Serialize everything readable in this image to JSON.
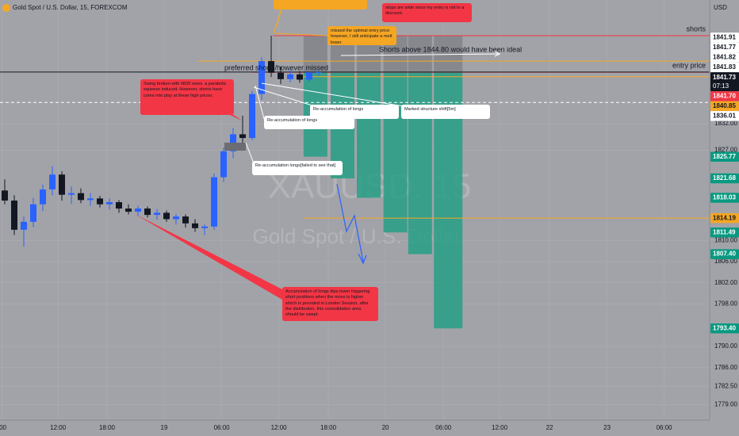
{
  "chart_data": {
    "type": "candlestick",
    "title": "Gold Spot / U.S. Dollar, 15, FOREXCOM",
    "currency": "USD",
    "watermark": [
      "XAUUSD, 15",
      "Gold Spot / U.S. Dollar"
    ],
    "up_color": "#2962ff",
    "down_color": "#131722",
    "x": [
      0.5,
      1.5,
      2.5,
      3.5,
      4.5,
      5.5,
      6.5,
      7.5,
      8.5,
      9.5,
      10.5,
      11.5,
      12.5,
      13.5,
      14.5,
      15.5,
      16.5,
      17.5,
      18.5,
      19.5,
      20.5,
      21.5,
      22.5,
      23.5,
      24.5,
      25.5,
      26.5,
      27.5,
      28.5,
      29.5,
      30.5,
      31.5,
      32.5,
      33.5
    ],
    "open": [
      1819.4,
      1817.5,
      1812.0,
      1813.5,
      1816.8,
      1819.6,
      1822.4,
      1818.6,
      1818.9,
      1817.6,
      1817.9,
      1816.8,
      1817.2,
      1816.0,
      1815.4,
      1816.0,
      1814.8,
      1815.2,
      1814.0,
      1814.5,
      1813.2,
      1812.3,
      1812.6,
      1821.9,
      1826.8,
      1830.0,
      1829.3,
      1837.6,
      1843.8,
      1841.6,
      1840.4,
      1841.3,
      1840.3,
      1841.7
    ],
    "high": [
      1821.5,
      1818.5,
      1814.5,
      1818.0,
      1820.5,
      1824.0,
      1823.0,
      1820.2,
      1819.8,
      1818.9,
      1818.4,
      1817.9,
      1817.6,
      1816.8,
      1816.5,
      1816.4,
      1815.9,
      1815.6,
      1815.0,
      1814.9,
      1814.0,
      1813.0,
      1822.6,
      1827.5,
      1831.2,
      1833.5,
      1838.2,
      1844.5,
      1848.6,
      1842.8,
      1842.2,
      1841.9,
      1841.5,
      1842.0
    ],
    "low": [
      1816.8,
      1811.0,
      1808.8,
      1812.5,
      1815.5,
      1818.5,
      1817.5,
      1816.9,
      1817.0,
      1816.5,
      1816.2,
      1815.8,
      1815.2,
      1814.9,
      1814.6,
      1814.3,
      1813.9,
      1813.5,
      1813.0,
      1812.4,
      1811.6,
      1811.0,
      1812.0,
      1821.0,
      1825.5,
      1828.2,
      1828.9,
      1836.5,
      1840.8,
      1839.5,
      1839.8,
      1839.7,
      1839.9,
      1841.0
    ],
    "close": [
      1817.5,
      1812.0,
      1813.5,
      1816.8,
      1819.6,
      1822.4,
      1818.6,
      1818.9,
      1817.6,
      1817.9,
      1816.8,
      1817.2,
      1816.0,
      1815.4,
      1816.0,
      1814.8,
      1815.2,
      1814.0,
      1814.5,
      1813.2,
      1812.3,
      1812.6,
      1821.9,
      1826.8,
      1830.0,
      1829.3,
      1837.6,
      1843.8,
      1841.6,
      1840.4,
      1841.3,
      1840.3,
      1841.7,
      1841.73
    ],
    "xlim": [
      0,
      74.58
    ],
    "xticks": [
      {
        "value": 0.2,
        "label": ":00"
      },
      {
        "value": 6.1,
        "label": "12:00"
      },
      {
        "value": 11.25,
        "label": "18:00"
      },
      {
        "value": 17.25,
        "label": "19"
      },
      {
        "value": 23.3,
        "label": "06:00"
      },
      {
        "value": 29.3,
        "label": "12:00"
      },
      {
        "value": 34.5,
        "label": "18:00"
      },
      {
        "value": 40.5,
        "label": "20"
      },
      {
        "value": 46.6,
        "label": "06:00"
      },
      {
        "value": 52.5,
        "label": "12:00"
      },
      {
        "value": 57.75,
        "label": "22"
      },
      {
        "value": 63.8,
        "label": "23"
      },
      {
        "value": 69.8,
        "label": "06:00"
      }
    ],
    "ylim": [
      1776.1,
      1855.32
    ],
    "yticks": [
      {
        "value": 1832,
        "label": "1832.00"
      },
      {
        "value": 1827,
        "label": "1827.00"
      },
      {
        "value": 1810,
        "label": "1810.00"
      },
      {
        "value": 1806,
        "label": "1806.00"
      },
      {
        "value": 1802,
        "label": "1802.00"
      },
      {
        "value": 1798,
        "label": "1798.00"
      },
      {
        "value": 1790,
        "label": "1790.00"
      },
      {
        "value": 1786,
        "label": "1786.00"
      },
      {
        "value": 1782.5,
        "label": "1782.50"
      },
      {
        "value": 1779,
        "label": "1779.00"
      }
    ],
    "levels": [
      {
        "value": 1848.6,
        "x0": 28.7,
        "color": "#f23645",
        "label": "shorts"
      },
      {
        "value": 1841.7,
        "x0": 26.5,
        "color": "#f23645",
        "label": "entry price"
      },
      {
        "value": 1841.73,
        "x0": 0,
        "color": "#131722"
      },
      {
        "value": 1843.8,
        "x0": 20.8,
        "color": "#f5a623"
      },
      {
        "value": 1840.85,
        "x0": 31.9,
        "color": "#f5a623"
      },
      {
        "value": 1814.19,
        "x0": 31.9,
        "color": "#f5a623"
      },
      {
        "value": 1836.01,
        "x0": 0,
        "color": "#ffffff",
        "dashed": true
      }
    ],
    "positions": {
      "entry": 1841.7,
      "stop": 1848.6,
      "targets": [
        1825.77,
        1821.68,
        1818.03,
        1811.49,
        1807.4,
        1793.4
      ],
      "x_ranges": [
        [
          31.9,
          34.4
        ],
        [
          34.75,
          37.25
        ],
        [
          37.5,
          40
        ],
        [
          40.3,
          42.8
        ],
        [
          42.9,
          45.4
        ],
        [
          45.6,
          48.6
        ]
      ]
    },
    "price_labels": [
      {
        "value": 1841.91,
        "label": "1841.91",
        "color": "#ffffff",
        "text_color": "#131722"
      },
      {
        "value": 1841.83,
        "label": "1841.83",
        "color": "#ffffff",
        "text_color": "#131722"
      },
      {
        "value": 1841.82,
        "label": "1841.82",
        "color": "#ffffff",
        "text_color": "#131722"
      },
      {
        "value": 1841.77,
        "label": "1841.77",
        "color": "#ffffff",
        "text_color": "#131722"
      },
      {
        "value": 1841.73,
        "label": "1841.73",
        "time": "07:13",
        "color": "#131722",
        "text_color": "#ffffff"
      },
      {
        "value": 1841.7,
        "label": "1841.70",
        "color": "#f23645",
        "text_color": "#ffffff"
      },
      {
        "value": 1840.85,
        "label": "1840.85",
        "color": "#f5a623",
        "text_color": "#131722"
      },
      {
        "value": 1836.01,
        "label": "1836.01",
        "color": "#ffffff",
        "text_color": "#131722"
      },
      {
        "value": 1825.77,
        "label": "1825.77",
        "color": "#089981",
        "text_color": "#ffffff"
      },
      {
        "value": 1821.68,
        "label": "1821.68",
        "color": "#089981",
        "text_color": "#ffffff"
      },
      {
        "value": 1818.03,
        "label": "1818.03",
        "color": "#089981",
        "text_color": "#ffffff"
      },
      {
        "value": 1814.19,
        "label": "1814.19",
        "color": "#f5a623",
        "text_color": "#131722"
      },
      {
        "value": 1811.49,
        "label": "1811.49",
        "color": "#089981",
        "text_color": "#ffffff"
      },
      {
        "value": 1807.4,
        "label": "1807.40",
        "color": "#089981",
        "text_color": "#ffffff"
      },
      {
        "value": 1793.4,
        "label": "1793.40",
        "color": "#089981",
        "text_color": "#ffffff"
      }
    ],
    "chart_texts": [
      "preferred shorts/however missed",
      "Shorts above 1844.80 would have been ideal"
    ],
    "notes": [
      {
        "text": "Swing broken with 0830 news. a parabolic squeeze induced. However, shorts have come into play at these high prices.",
        "color": "#f23645"
      },
      {
        "text": "stops are wide since my entry is not in a discount.",
        "color": "#f23645"
      },
      {
        "text": "missed the optimal entry price however, I still anticipate a melt lower.",
        "color": "#f5a623"
      },
      {
        "text": "Re-accumulation of longs",
        "color": "#ffffff"
      },
      {
        "text": "Marked structure shift[5m]",
        "color": "#ffffff"
      },
      {
        "text": "Re-accumulation of longs",
        "color": "#ffffff"
      },
      {
        "text": "Re-accumulation longs[failed to see that]",
        "color": "#ffffff"
      },
      {
        "text": "Accumulation of longs dips lower triggering short positions when the move is higher which is provided in London Session. after the distribution, this consolidation area should be swept.",
        "color": "#f23645"
      }
    ]
  }
}
